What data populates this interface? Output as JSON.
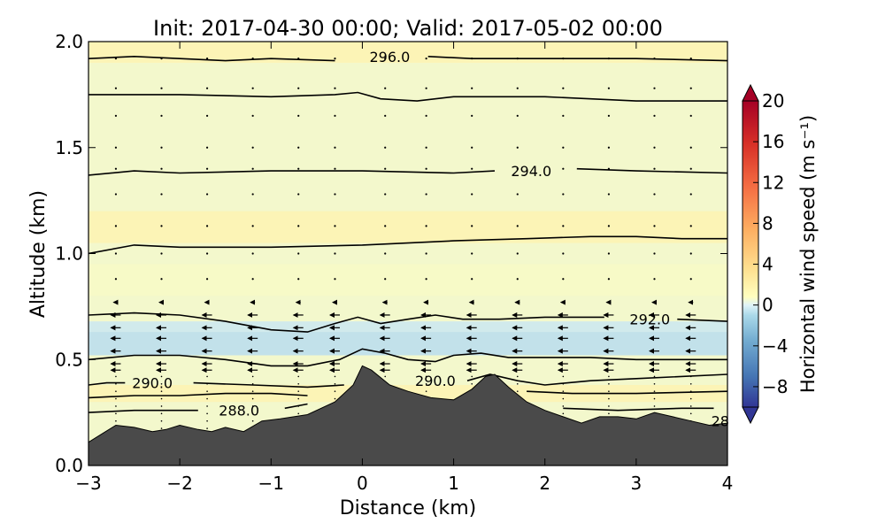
{
  "chart_data": {
    "type": "contour",
    "title": "Init: 2017-04-30 00:00; Valid: 2017-05-02 00:00",
    "xlabel": "Distance (km)",
    "ylabel": "Altitude (km)",
    "xlim": [
      -3,
      4
    ],
    "ylim": [
      0,
      2
    ],
    "xticks": [
      "−3",
      "−2",
      "−1",
      "0",
      "1",
      "2",
      "3",
      "4"
    ],
    "xtick_values": [
      -3,
      -2,
      -1,
      0,
      1,
      2,
      3,
      4
    ],
    "yticks": [
      "0.0",
      "0.5",
      "1.0",
      "1.5",
      "2.0"
    ],
    "ytick_values": [
      0,
      0.5,
      1.0,
      1.5,
      2.0
    ],
    "colorbar": {
      "label": "Horizontal wind speed (m s⁻¹)",
      "ticks": [
        "20",
        "16",
        "12",
        "8",
        "4",
        "0",
        "−4",
        "−8"
      ],
      "tick_values": [
        20,
        16,
        12,
        8,
        4,
        0,
        -4,
        -8
      ],
      "range": [
        -10,
        20
      ],
      "extend": "both"
    },
    "contour_labels": [
      {
        "text": "296.0",
        "x": 0.3,
        "y": 1.93
      },
      {
        "text": "294.0",
        "x": 1.85,
        "y": 1.39
      },
      {
        "text": "292.0",
        "x": 3.15,
        "y": 0.69
      },
      {
        "text": "290.0",
        "x": -2.3,
        "y": 0.39
      },
      {
        "text": "290.0",
        "x": 0.8,
        "y": 0.4
      },
      {
        "text": "288.0",
        "x": -1.35,
        "y": 0.26
      },
      {
        "text": "28",
        "x": 3.92,
        "y": 0.21
      }
    ],
    "contours": [
      {
        "level": 296.0,
        "points": [
          [
            -3,
            1.92
          ],
          [
            -2.5,
            1.93
          ],
          [
            -2.0,
            1.92
          ],
          [
            -1.5,
            1.91
          ],
          [
            -1.0,
            1.92
          ],
          [
            -0.3,
            1.91
          ]
        ],
        "gap_to": [
          0.72,
          1.93
        ],
        "points2": [
          [
            0.72,
            1.93
          ],
          [
            1.2,
            1.92
          ],
          [
            2.0,
            1.92
          ],
          [
            3.0,
            1.92
          ],
          [
            4,
            1.91
          ]
        ]
      },
      {
        "level": 295.0,
        "points": [
          [
            -3,
            1.75
          ],
          [
            -2.0,
            1.75
          ],
          [
            -1.0,
            1.74
          ],
          [
            -0.3,
            1.75
          ],
          [
            -0.05,
            1.76
          ],
          [
            0.2,
            1.73
          ],
          [
            0.6,
            1.72
          ],
          [
            1.0,
            1.74
          ],
          [
            2.0,
            1.74
          ],
          [
            3.0,
            1.72
          ],
          [
            4,
            1.72
          ]
        ]
      },
      {
        "level": 294.0,
        "points": [
          [
            -3,
            1.37
          ],
          [
            -2.5,
            1.39
          ],
          [
            -2.0,
            1.38
          ],
          [
            -1.0,
            1.39
          ],
          [
            0.0,
            1.39
          ],
          [
            1.0,
            1.38
          ],
          [
            1.45,
            1.39
          ]
        ],
        "gap_to": [
          2.35,
          1.4
        ],
        "points2": [
          [
            2.35,
            1.4
          ],
          [
            3.0,
            1.39
          ],
          [
            4,
            1.38
          ]
        ]
      },
      {
        "level": 293.0,
        "points": [
          [
            -3,
            1.0
          ],
          [
            -2.5,
            1.04
          ],
          [
            -2.0,
            1.03
          ],
          [
            -1.0,
            1.03
          ],
          [
            0.0,
            1.04
          ],
          [
            1.0,
            1.06
          ],
          [
            1.8,
            1.07
          ],
          [
            2.5,
            1.08
          ],
          [
            3.0,
            1.08
          ],
          [
            3.5,
            1.07
          ],
          [
            4,
            1.07
          ]
        ]
      },
      {
        "level": 292.0,
        "points": [
          [
            -3,
            0.71
          ],
          [
            -2.5,
            0.72
          ],
          [
            -2.0,
            0.71
          ],
          [
            -1.5,
            0.68
          ],
          [
            -1.0,
            0.64
          ],
          [
            -0.6,
            0.63
          ],
          [
            -0.3,
            0.67
          ],
          [
            -0.05,
            0.7
          ],
          [
            0.2,
            0.67
          ],
          [
            0.5,
            0.69
          ],
          [
            0.8,
            0.71
          ],
          [
            1.1,
            0.69
          ],
          [
            1.5,
            0.69
          ],
          [
            2.0,
            0.7
          ],
          [
            2.65,
            0.7
          ]
        ],
        "gap_to": [
          3.45,
          0.69
        ],
        "points2": [
          [
            3.45,
            0.69
          ],
          [
            4,
            0.68
          ]
        ]
      },
      {
        "level": 291.5,
        "points": [
          [
            -3,
            0.5
          ],
          [
            -2.5,
            0.52
          ],
          [
            -2.0,
            0.52
          ],
          [
            -1.5,
            0.5
          ],
          [
            -1.0,
            0.47
          ],
          [
            -0.6,
            0.47
          ],
          [
            -0.25,
            0.5
          ],
          [
            0.0,
            0.55
          ],
          [
            0.25,
            0.53
          ],
          [
            0.5,
            0.5
          ],
          [
            0.8,
            0.49
          ],
          [
            1.0,
            0.52
          ],
          [
            1.3,
            0.53
          ],
          [
            1.6,
            0.51
          ],
          [
            2.0,
            0.51
          ],
          [
            2.5,
            0.51
          ],
          [
            3.0,
            0.5
          ],
          [
            4,
            0.5
          ]
        ]
      },
      {
        "level": 290.0,
        "points": [
          [
            -3,
            0.38
          ],
          [
            -2.8,
            0.39
          ],
          [
            -2.6,
            0.39
          ]
        ],
        "gap_to": [
          -1.85,
          0.39
        ],
        "points2": [
          [
            -1.85,
            0.39
          ],
          [
            -1.2,
            0.38
          ],
          [
            -0.6,
            0.37
          ],
          [
            -0.2,
            0.38
          ]
        ]
      },
      {
        "level": 290.0,
        "points": [
          [
            1.15,
            0.4
          ],
          [
            1.4,
            0.43
          ],
          [
            1.7,
            0.4
          ],
          [
            2.0,
            0.38
          ],
          [
            2.5,
            0.4
          ],
          [
            3.0,
            0.41
          ],
          [
            4,
            0.43
          ]
        ]
      },
      {
        "level": 289.0,
        "points": [
          [
            -3,
            0.32
          ],
          [
            -2.5,
            0.33
          ],
          [
            -2.0,
            0.33
          ],
          [
            -1.5,
            0.34
          ],
          [
            -1.0,
            0.34
          ],
          [
            -0.6,
            0.33
          ]
        ]
      },
      {
        "level": 289.0,
        "points": [
          [
            1.8,
            0.35
          ],
          [
            2.3,
            0.34
          ],
          [
            3.0,
            0.34
          ],
          [
            4,
            0.35
          ]
        ]
      },
      {
        "level": 288.0,
        "points": [
          [
            -3,
            0.25
          ],
          [
            -2.5,
            0.26
          ],
          [
            -1.8,
            0.26
          ]
        ],
        "gap_to": [
          -0.85,
          0.27
        ],
        "points2": [
          [
            -0.85,
            0.27
          ],
          [
            -0.6,
            0.29
          ]
        ]
      },
      {
        "level": 288.0,
        "points": [
          [
            2.2,
            0.27
          ],
          [
            2.8,
            0.26
          ],
          [
            3.5,
            0.27
          ],
          [
            3.85,
            0.27
          ]
        ]
      }
    ],
    "terrain": [
      [
        -3,
        0.11
      ],
      [
        -2.85,
        0.15
      ],
      [
        -2.7,
        0.19
      ],
      [
        -2.5,
        0.18
      ],
      [
        -2.3,
        0.16
      ],
      [
        -2.15,
        0.17
      ],
      [
        -2.0,
        0.19
      ],
      [
        -1.8,
        0.17
      ],
      [
        -1.65,
        0.16
      ],
      [
        -1.5,
        0.18
      ],
      [
        -1.3,
        0.16
      ],
      [
        -1.1,
        0.21
      ],
      [
        -0.9,
        0.22
      ],
      [
        -0.6,
        0.24
      ],
      [
        -0.3,
        0.3
      ],
      [
        -0.1,
        0.38
      ],
      [
        0.0,
        0.47
      ],
      [
        0.1,
        0.45
      ],
      [
        0.3,
        0.38
      ],
      [
        0.5,
        0.35
      ],
      [
        0.75,
        0.32
      ],
      [
        1.0,
        0.31
      ],
      [
        1.2,
        0.36
      ],
      [
        1.35,
        0.42
      ],
      [
        1.45,
        0.43
      ],
      [
        1.6,
        0.37
      ],
      [
        1.8,
        0.3
      ],
      [
        2.0,
        0.26
      ],
      [
        2.2,
        0.23
      ],
      [
        2.4,
        0.2
      ],
      [
        2.6,
        0.23
      ],
      [
        2.8,
        0.23
      ],
      [
        3.0,
        0.22
      ],
      [
        3.2,
        0.25
      ],
      [
        3.4,
        0.23
      ],
      [
        3.6,
        0.21
      ],
      [
        3.8,
        0.19
      ],
      [
        4,
        0.2
      ]
    ],
    "wind_field": {
      "columns_x": [
        -2.7,
        -2.2,
        -1.7,
        -1.2,
        -0.7,
        -0.3,
        0.25,
        0.7,
        1.2,
        1.7,
        2.2,
        2.7,
        3.2,
        3.6
      ],
      "rows_y": [
        1.92,
        1.78,
        1.65,
        1.5,
        1.4,
        1.28,
        1.13,
        1.0,
        0.88,
        0.77,
        0.71,
        0.65,
        0.6,
        0.54,
        0.48,
        0.45
      ],
      "strong_layer": [
        0.45,
        0.72
      ],
      "direction": "westward"
    },
    "shading_bands": [
      {
        "y0": 1.9,
        "y1": 2.0,
        "value": 2
      },
      {
        "y0": 1.05,
        "y1": 1.2,
        "value": 2
      },
      {
        "y0": 0.8,
        "y1": 0.95,
        "value": 1
      },
      {
        "y0": 0.52,
        "y1": 0.68,
        "value": -3
      },
      {
        "y0": 0.3,
        "y1": 0.38,
        "value": 2
      }
    ]
  }
}
